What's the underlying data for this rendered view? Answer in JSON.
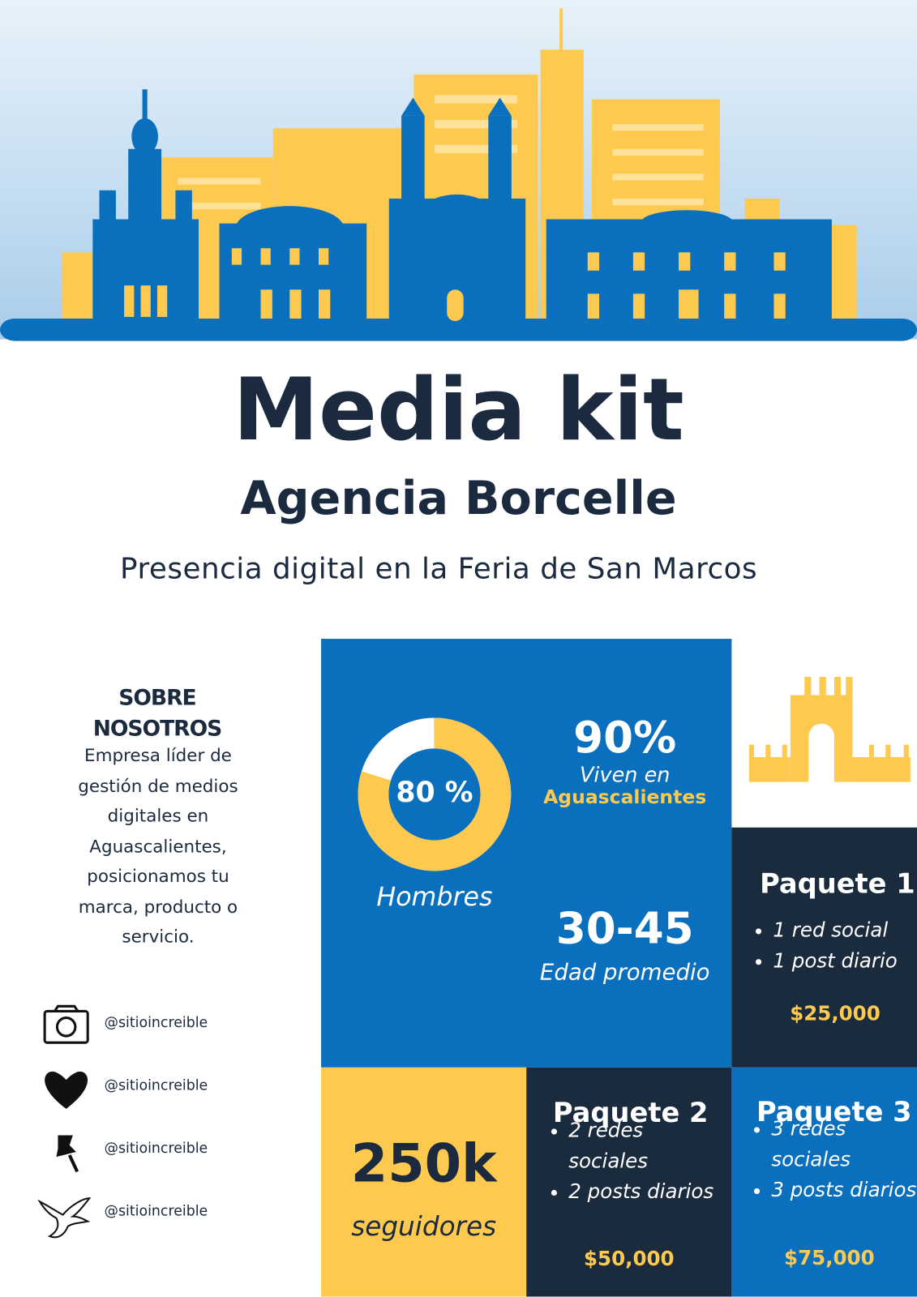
{
  "header": {
    "title": "Media kit",
    "subtitle": "Agencia Borcelle",
    "tagline": "Presencia digital en la Feria de San Marcos"
  },
  "about": {
    "heading": "SOBRE NOSOTROS",
    "text": "Empresa líder de gestión de medios digitales en Aguascalientes, posicionamos tu marca, producto o servicio."
  },
  "social": [
    "@sitioincreible",
    "@sitioincreible",
    "@sitioincreible",
    "@sitioincreible"
  ],
  "stats": {
    "donut": {
      "value": 80,
      "label": "80 %",
      "caption": "Hombres"
    },
    "residence": {
      "value": "90%",
      "caption": "Viven en",
      "place": "Aguascalientes"
    },
    "age": {
      "value": "30-45",
      "caption": "Edad promedio"
    },
    "followers": {
      "value": "250k",
      "caption": "seguidores"
    }
  },
  "packages": [
    {
      "name": "Paquete 1",
      "features": [
        "1 red social",
        "1 post diario"
      ],
      "price": "$25,000"
    },
    {
      "name": "Paquete 2",
      "features": [
        "2 redes sociales",
        "2 posts diarios"
      ],
      "price": "$50,000"
    },
    {
      "name": "Paquete 3",
      "features": [
        "3 redes sociales",
        "3 posts diarios"
      ],
      "price": "$75,000"
    }
  ]
}
